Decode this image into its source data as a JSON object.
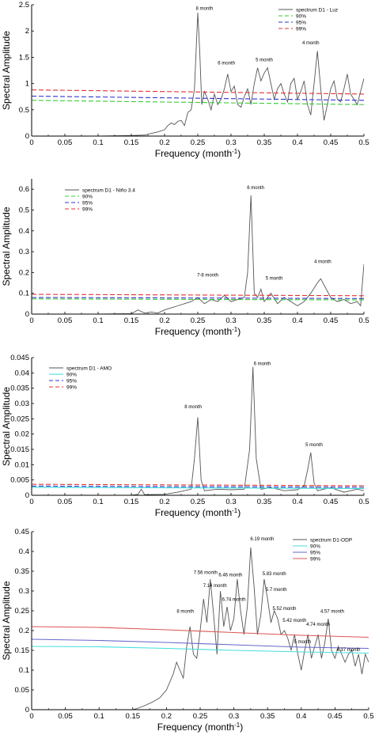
{
  "chart_data": [
    {
      "type": "line",
      "xlabel": "Frequency (month",
      "xlabel_sup": "-1",
      "xlabel_end": ")",
      "ylabel": "Spectral Amplitude",
      "xlim": [
        0,
        0.5
      ],
      "ylim": [
        0,
        2.5
      ],
      "xticks": [
        0,
        0.05,
        0.1,
        0.15,
        0.2,
        0.25,
        0.3,
        0.35,
        0.4,
        0.45,
        0.5
      ],
      "xtick_labels": [
        "0",
        "0.05",
        "0.1",
        "0.15",
        "0.2",
        "0.25",
        "0.3",
        "0.35",
        "0.4",
        "0.45",
        "0.5"
      ],
      "yticks": [
        0,
        0.5,
        1,
        1.5,
        2,
        2.5
      ],
      "ytick_labels": [
        "0",
        "0.5",
        "1",
        "1.5",
        "2",
        "2.5"
      ],
      "legend_position": "top-right",
      "series": [
        {
          "name": "spectrum D1 - Luz",
          "color": "#555555",
          "style": "solid",
          "x": [
            0,
            0.1,
            0.15,
            0.17,
            0.18,
            0.19,
            0.2,
            0.205,
            0.21,
            0.215,
            0.22,
            0.225,
            0.23,
            0.235,
            0.24,
            0.245,
            0.25,
            0.253,
            0.256,
            0.26,
            0.265,
            0.27,
            0.275,
            0.28,
            0.285,
            0.29,
            0.295,
            0.3,
            0.305,
            0.31,
            0.315,
            0.32,
            0.325,
            0.33,
            0.335,
            0.34,
            0.345,
            0.35,
            0.355,
            0.36,
            0.365,
            0.37,
            0.375,
            0.38,
            0.385,
            0.39,
            0.395,
            0.4,
            0.405,
            0.41,
            0.415,
            0.42,
            0.425,
            0.43,
            0.435,
            0.44,
            0.445,
            0.45,
            0.455,
            0.46,
            0.465,
            0.47,
            0.475,
            0.48,
            0.485,
            0.49,
            0.495,
            0.5
          ],
          "y": [
            0,
            0,
            0.01,
            0.02,
            0.05,
            0.08,
            0.12,
            0.2,
            0.25,
            0.22,
            0.28,
            0.3,
            0.2,
            0.45,
            0.5,
            0.9,
            2.35,
            1.6,
            0.6,
            0.85,
            0.7,
            0.5,
            0.8,
            0.6,
            0.7,
            0.9,
            1.18,
            0.85,
            0.95,
            0.6,
            0.55,
            0.75,
            0.9,
            0.6,
            1.0,
            1.3,
            1.05,
            1.2,
            1.3,
            1.0,
            0.7,
            0.9,
            1.0,
            0.8,
            0.65,
            1.0,
            1.1,
            0.7,
            0.85,
            1.05,
            0.6,
            0.4,
            1.0,
            1.62,
            0.9,
            0.3,
            0.6,
            0.9,
            1.05,
            0.7,
            0.65,
            0.9,
            1.18,
            0.8,
            0.7,
            0.6,
            0.85,
            1.1
          ]
        },
        {
          "name": "90%",
          "color": "#33cc33",
          "style": "dashed",
          "x": [
            0,
            0.5
          ],
          "y": [
            0.68,
            0.6
          ]
        },
        {
          "name": "95%",
          "color": "#3333cc",
          "style": "dashed",
          "x": [
            0,
            0.5
          ],
          "y": [
            0.76,
            0.68
          ]
        },
        {
          "name": "99%",
          "color": "#dd3333",
          "style": "dashed",
          "x": [
            0,
            0.5
          ],
          "y": [
            0.88,
            0.8
          ]
        }
      ],
      "annotations": [
        {
          "text": "8 month",
          "x": 0.26,
          "y": 2.4
        },
        {
          "text": "6 month",
          "x": 0.293,
          "y": 1.36
        },
        {
          "text": "5 month",
          "x": 0.35,
          "y": 1.42
        },
        {
          "text": "4 month",
          "x": 0.42,
          "y": 1.75
        }
      ]
    },
    {
      "type": "line",
      "xlabel": "Frequency (month",
      "xlabel_sup": "-1",
      "xlabel_end": ")",
      "ylabel": "Spectral Amplitude",
      "xlim": [
        0,
        0.5
      ],
      "ylim": [
        0,
        0.65
      ],
      "xticks": [
        0,
        0.05,
        0.1,
        0.15,
        0.2,
        0.25,
        0.3,
        0.35,
        0.4,
        0.45,
        0.5
      ],
      "xtick_labels": [
        "0",
        "0.05",
        "0.1",
        "0.15",
        "0.2",
        "0.25",
        "0.3",
        "0.35",
        "0.4",
        "0.45",
        "0.5"
      ],
      "yticks": [
        0,
        0.1,
        0.2,
        0.3,
        0.4,
        0.5,
        0.6
      ],
      "ytick_labels": [
        "0",
        "0.1",
        "0.2",
        "0.3",
        "0.4",
        "0.5",
        "0.6"
      ],
      "legend_position": "top-left",
      "series": [
        {
          "name": "spectrum D1 - Niño 3.4",
          "color": "#555555",
          "style": "solid",
          "x": [
            0,
            0.1,
            0.15,
            0.16,
            0.17,
            0.18,
            0.19,
            0.2,
            0.21,
            0.22,
            0.23,
            0.24,
            0.25,
            0.26,
            0.27,
            0.28,
            0.29,
            0.3,
            0.31,
            0.32,
            0.325,
            0.33,
            0.335,
            0.34,
            0.345,
            0.35,
            0.36,
            0.37,
            0.38,
            0.39,
            0.4,
            0.41,
            0.42,
            0.43,
            0.435,
            0.44,
            0.45,
            0.46,
            0.47,
            0.48,
            0.49,
            0.495,
            0.5
          ],
          "y": [
            0,
            0,
            0.002,
            0.02,
            0.005,
            0.01,
            0.005,
            0.02,
            0.03,
            0.04,
            0.05,
            0.06,
            0.08,
            0.05,
            0.07,
            0.06,
            0.09,
            0.06,
            0.07,
            0.08,
            0.2,
            0.57,
            0.1,
            0.08,
            0.12,
            0.06,
            0.1,
            0.05,
            0.08,
            0.06,
            0.04,
            0.06,
            0.1,
            0.15,
            0.17,
            0.14,
            0.08,
            0.06,
            0.07,
            0.05,
            0.06,
            0.04,
            0.24
          ]
        },
        {
          "name": "90%",
          "color": "#33cc33",
          "style": "dashed",
          "x": [
            0,
            0.5
          ],
          "y": [
            0.073,
            0.068
          ]
        },
        {
          "name": "95%",
          "color": "#3333cc",
          "style": "dashed",
          "x": [
            0,
            0.5
          ],
          "y": [
            0.08,
            0.075
          ]
        },
        {
          "name": "99%",
          "color": "#dd3333",
          "style": "dashed",
          "x": [
            0,
            0.5
          ],
          "y": [
            0.095,
            0.088
          ]
        }
      ],
      "annotations": [
        {
          "text": "7-8 month",
          "x": 0.265,
          "y": 0.18
        },
        {
          "text": "6 month",
          "x": 0.337,
          "y": 0.6
        },
        {
          "text": "5 month",
          "x": 0.365,
          "y": 0.165
        },
        {
          "text": "4 month",
          "x": 0.438,
          "y": 0.245
        }
      ]
    },
    {
      "type": "line",
      "xlabel": "Frequency (month",
      "xlabel_sup": "-1",
      "xlabel_end": ")",
      "ylabel": "Spectral Amplitude",
      "xlim": [
        0,
        0.5
      ],
      "ylim": [
        0,
        0.045
      ],
      "xticks": [
        0,
        0.05,
        0.1,
        0.15,
        0.2,
        0.25,
        0.3,
        0.35,
        0.4,
        0.45,
        0.5
      ],
      "xtick_labels": [
        "0",
        "0.05",
        "0.1",
        "0.15",
        "0.2",
        "0.25",
        "0.3",
        "0.35",
        "0.4",
        "0.45",
        "0.5"
      ],
      "yticks": [
        0,
        0.005,
        0.01,
        0.015,
        0.02,
        0.025,
        0.03,
        0.035,
        0.04,
        0.045
      ],
      "ytick_labels": [
        "0",
        "0.005",
        "0.01",
        "0.015",
        "0.02",
        "0.025",
        "0.03",
        "0.035",
        "0.04",
        "0.045"
      ],
      "legend_position": "top-left",
      "series": [
        {
          "name": "spectrum D1 - AMO",
          "color": "#555555",
          "style": "solid",
          "x": [
            0,
            0.15,
            0.16,
            0.165,
            0.17,
            0.2,
            0.22,
            0.24,
            0.245,
            0.25,
            0.255,
            0.26,
            0.28,
            0.3,
            0.32,
            0.328,
            0.333,
            0.338,
            0.345,
            0.36,
            0.38,
            0.4,
            0.41,
            0.415,
            0.42,
            0.425,
            0.43,
            0.45,
            0.47,
            0.49,
            0.5
          ],
          "y": [
            0,
            0,
            0.0003,
            0.002,
            0.0002,
            0.0003,
            0.001,
            0.002,
            0.012,
            0.0255,
            0.005,
            0.0015,
            0.002,
            0.0018,
            0.002,
            0.015,
            0.042,
            0.012,
            0.002,
            0.0025,
            0.0015,
            0.0018,
            0.003,
            0.008,
            0.014,
            0.004,
            0.0015,
            0.0025,
            0.001,
            0.002,
            0.0015
          ]
        },
        {
          "name": "90%",
          "color": "#33dddd",
          "style": "solid",
          "x": [
            0,
            0.5
          ],
          "y": [
            0.0026,
            0.0022
          ]
        },
        {
          "name": "95%",
          "color": "#3333cc",
          "style": "dashed",
          "x": [
            0,
            0.5
          ],
          "y": [
            0.003,
            0.0026
          ]
        },
        {
          "name": "99%",
          "color": "#dd3333",
          "style": "dashed",
          "x": [
            0,
            0.5
          ],
          "y": [
            0.0036,
            0.0031
          ]
        }
      ],
      "annotations": [
        {
          "text": "8 month",
          "x": 0.243,
          "y": 0.0285
        },
        {
          "text": "6 month",
          "x": 0.347,
          "y": 0.0425
        },
        {
          "text": "5 month",
          "x": 0.425,
          "y": 0.016
        }
      ]
    },
    {
      "type": "line",
      "xlabel": "Frequency (month",
      "xlabel_sup": "-1",
      "xlabel_end": ")",
      "ylabel": "Spectral Amplitude",
      "xlim": [
        0,
        0.5
      ],
      "ylim": [
        0,
        0.45
      ],
      "xticks": [
        0,
        0.05,
        0.1,
        0.15,
        0.2,
        0.25,
        0.3,
        0.35,
        0.4,
        0.45,
        0.5
      ],
      "xtick_labels": [
        "0",
        "0.05",
        "0.1",
        "0.15",
        "0.2",
        "0.25",
        "0.3",
        "0.35",
        "0.4",
        "0.45",
        "0.5"
      ],
      "yticks": [
        0,
        0.05,
        0.1,
        0.15,
        0.2,
        0.25,
        0.3,
        0.35,
        0.4,
        0.45
      ],
      "ytick_labels": [
        "0",
        "0.05",
        "0.1",
        "0.15",
        "0.2",
        "0.25",
        "0.3",
        "0.35",
        "0.4",
        "0.45"
      ],
      "legend_position": "top-right",
      "series": [
        {
          "name": "spectrum D1-ODP",
          "color": "#555555",
          "style": "solid",
          "x": [
            0,
            0.15,
            0.16,
            0.17,
            0.18,
            0.19,
            0.2,
            0.21,
            0.215,
            0.22,
            0.225,
            0.23,
            0.235,
            0.24,
            0.245,
            0.25,
            0.255,
            0.26,
            0.265,
            0.27,
            0.275,
            0.28,
            0.285,
            0.29,
            0.295,
            0.3,
            0.305,
            0.31,
            0.315,
            0.32,
            0.325,
            0.33,
            0.335,
            0.34,
            0.345,
            0.35,
            0.355,
            0.36,
            0.365,
            0.37,
            0.375,
            0.38,
            0.385,
            0.39,
            0.395,
            0.4,
            0.405,
            0.41,
            0.415,
            0.42,
            0.425,
            0.43,
            0.435,
            0.44,
            0.445,
            0.45,
            0.455,
            0.46,
            0.465,
            0.47,
            0.475,
            0.48,
            0.485,
            0.49,
            0.495,
            0.5
          ],
          "y": [
            0,
            0,
            0.005,
            0.012,
            0.02,
            0.03,
            0.05,
            0.09,
            0.12,
            0.1,
            0.08,
            0.16,
            0.21,
            0.14,
            0.13,
            0.2,
            0.28,
            0.22,
            0.33,
            0.24,
            0.14,
            0.3,
            0.21,
            0.26,
            0.2,
            0.23,
            0.33,
            0.25,
            0.19,
            0.26,
            0.41,
            0.31,
            0.19,
            0.24,
            0.33,
            0.28,
            0.22,
            0.25,
            0.23,
            0.19,
            0.2,
            0.18,
            0.15,
            0.19,
            0.14,
            0.1,
            0.15,
            0.19,
            0.13,
            0.16,
            0.19,
            0.13,
            0.17,
            0.23,
            0.15,
            0.13,
            0.16,
            0.14,
            0.12,
            0.14,
            0.15,
            0.11,
            0.14,
            0.09,
            0.14,
            0.12
          ]
        },
        {
          "name": "90%",
          "color": "#44dddd",
          "style": "solid",
          "x": [
            0,
            0.1,
            0.2,
            0.3,
            0.4,
            0.5
          ],
          "y": [
            0.16,
            0.159,
            0.155,
            0.15,
            0.146,
            0.143
          ]
        },
        {
          "name": "95%",
          "color": "#6666cc",
          "style": "solid",
          "x": [
            0,
            0.1,
            0.2,
            0.3,
            0.4,
            0.5
          ],
          "y": [
            0.178,
            0.175,
            0.17,
            0.164,
            0.158,
            0.155
          ]
        },
        {
          "name": "99%",
          "color": "#dd5555",
          "style": "solid",
          "x": [
            0,
            0.1,
            0.2,
            0.3,
            0.4,
            0.5
          ],
          "y": [
            0.21,
            0.208,
            0.202,
            0.195,
            0.188,
            0.183
          ]
        }
      ],
      "annotations": [
        {
          "text": "8 month",
          "x": 0.228,
          "y": 0.245
        },
        {
          "text": "7.56 month",
          "x": 0.258,
          "y": 0.343
        },
        {
          "text": "7.14 month",
          "x": 0.272,
          "y": 0.31
        },
        {
          "text": "6.46 month",
          "x": 0.295,
          "y": 0.337
        },
        {
          "text": "6.74 month",
          "x": 0.3,
          "y": 0.275
        },
        {
          "text": "6.19 month",
          "x": 0.342,
          "y": 0.428
        },
        {
          "text": "5.83 month",
          "x": 0.36,
          "y": 0.34
        },
        {
          "text": "5.7 month",
          "x": 0.363,
          "y": 0.3
        },
        {
          "text": "5.52 month",
          "x": 0.375,
          "y": 0.252
        },
        {
          "text": "5.42 month",
          "x": 0.39,
          "y": 0.222
        },
        {
          "text": "5 month",
          "x": 0.402,
          "y": 0.168
        },
        {
          "text": "4.74 month",
          "x": 0.425,
          "y": 0.212
        },
        {
          "text": "4.57 month",
          "x": 0.446,
          "y": 0.245
        },
        {
          "text": "4.37 month",
          "x": 0.47,
          "y": 0.148
        }
      ]
    }
  ]
}
